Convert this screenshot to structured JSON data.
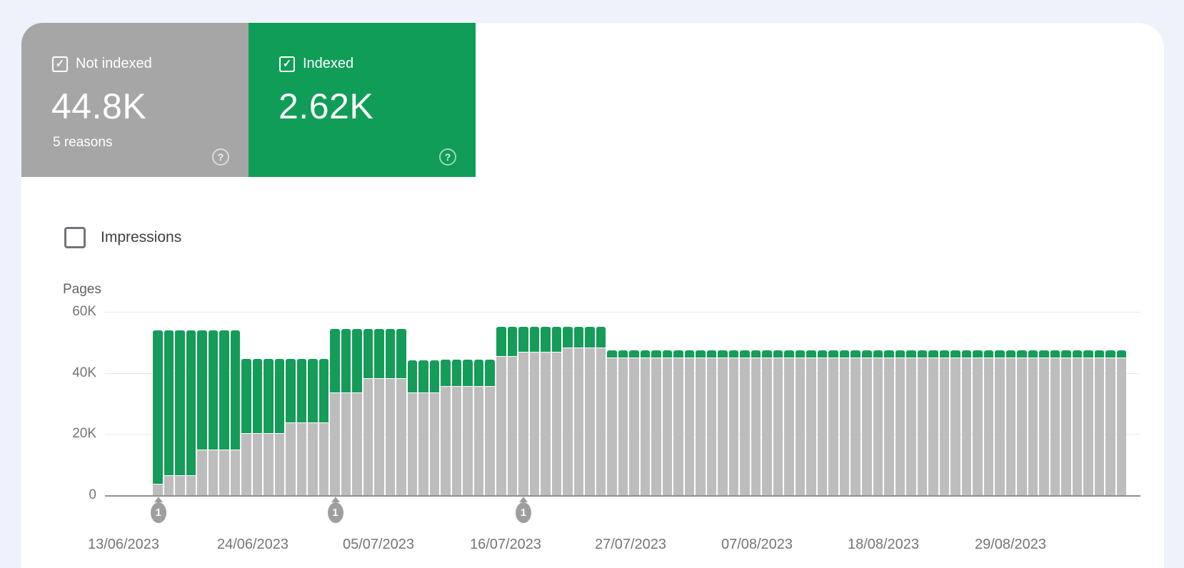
{
  "page": {
    "background_color": "#eff2fb",
    "card_background_color": "#ffffff"
  },
  "summary_cards": [
    {
      "label": "Not indexed",
      "value": "44.8K",
      "sub_label": "5 reasons",
      "checked": true,
      "check_glyph": "✓",
      "help_glyph": "?",
      "color": "#a6a6a6"
    },
    {
      "label": "Indexed",
      "value": "2.62K",
      "sub_label": "",
      "checked": true,
      "check_glyph": "✓",
      "help_glyph": "?",
      "color": "#0f9d58"
    }
  ],
  "impressions": {
    "label": "Impressions",
    "checked": false
  },
  "chart_data": {
    "type": "bar",
    "stacked": true,
    "title": "Pages",
    "ylabel": "Pages",
    "ylim": [
      0,
      60000
    ],
    "grid": true,
    "legend_position": "none",
    "y_ticks": [
      {
        "value": 60000,
        "label": "60K"
      },
      {
        "value": 40000,
        "label": "40K"
      },
      {
        "value": 20000,
        "label": "20K"
      },
      {
        "value": 0,
        "label": "0"
      }
    ],
    "x_tick_labels": [
      "13/06/2023",
      "24/06/2023",
      "05/07/2023",
      "16/07/2023",
      "27/07/2023",
      "07/08/2023",
      "18/08/2023",
      "29/08/2023"
    ],
    "series": [
      {
        "name": "Not indexed",
        "color": "#bdbdbd",
        "values": [
          3600,
          6400,
          6400,
          6400,
          14700,
          14700,
          14700,
          14700,
          20000,
          20000,
          20000,
          20000,
          23700,
          23700,
          23700,
          23700,
          33500,
          33500,
          33500,
          38000,
          38000,
          38000,
          38000,
          33400,
          33400,
          33400,
          35500,
          35500,
          35500,
          35500,
          35500,
          45300,
          45300,
          46700,
          46700,
          46700,
          46700,
          48100,
          48100,
          48100,
          48100,
          44800,
          44800,
          44800,
          44800,
          44800,
          44800,
          44800,
          44800,
          44800,
          44800,
          44800,
          44800,
          44800,
          44800,
          44800,
          44800,
          44800,
          44800,
          44800,
          44800,
          44800,
          44800,
          44800,
          44800,
          44800,
          44800,
          44800,
          44800,
          44800,
          44800,
          44800,
          44800,
          44800,
          44800,
          44800,
          44800,
          44800,
          44800,
          44800,
          44800,
          44800,
          44800,
          44800,
          44800,
          44800,
          44800,
          44800
        ]
      },
      {
        "name": "Indexed",
        "color": "#149c58",
        "values": [
          50400,
          47600,
          47600,
          47600,
          39300,
          39300,
          39300,
          39300,
          24500,
          24500,
          24500,
          24500,
          20800,
          20800,
          20800,
          20800,
          20800,
          20800,
          20800,
          16300,
          16300,
          16300,
          16300,
          10800,
          10800,
          10800,
          8800,
          8800,
          8800,
          8800,
          8800,
          9700,
          9700,
          8300,
          8300,
          8300,
          8300,
          6900,
          6900,
          6900,
          6900,
          2620,
          2620,
          2620,
          2620,
          2620,
          2620,
          2620,
          2620,
          2620,
          2620,
          2620,
          2620,
          2620,
          2620,
          2620,
          2620,
          2620,
          2620,
          2620,
          2620,
          2620,
          2620,
          2620,
          2620,
          2620,
          2620,
          2620,
          2620,
          2620,
          2620,
          2620,
          2620,
          2620,
          2620,
          2620,
          2620,
          2620,
          2620,
          2620,
          2620,
          2620,
          2620,
          2620,
          2620,
          2620,
          2620,
          2620
        ]
      }
    ],
    "annotations": [
      {
        "label": "1",
        "bar_index": 1
      },
      {
        "label": "1",
        "bar_index": 17
      },
      {
        "label": "1",
        "bar_index": 34
      }
    ]
  }
}
